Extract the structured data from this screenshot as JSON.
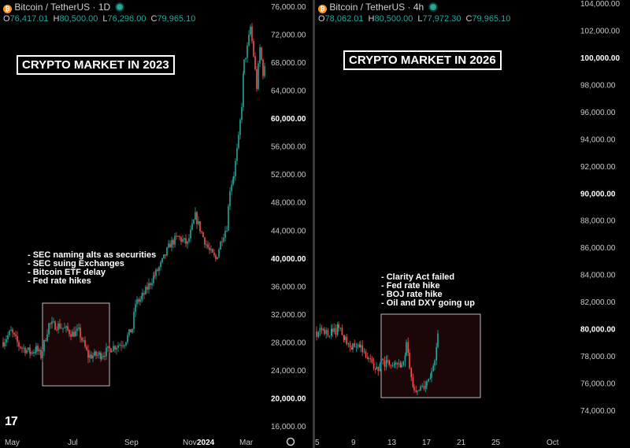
{
  "left": {
    "symbol": "Bitcoin / TetherUS",
    "interval": "1D",
    "ohlc": {
      "o": "76,417.01",
      "h": "80,500.00",
      "l": "76,296.00",
      "c": "79,965.10"
    },
    "title": "CRYPTO MARKET IN 2023",
    "notes": [
      "- SEC naming alts as securities",
      "- SEC suing Exchanges",
      "- Bitcoin ETF delay",
      "- Fed rate hikes"
    ]
  },
  "right": {
    "symbol": "Bitcoin / TetherUS",
    "interval": "4h",
    "ohlc": {
      "o": "78,062.01",
      "h": "80,500.00",
      "l": "77,972.30",
      "c": "79,965.10"
    },
    "title": "CRYPTO MARKET IN 2026",
    "notes": [
      "- Clarity Act failed",
      "- Fed rate hike",
      "- BOJ rate hike",
      "- Oil and DXY going up"
    ]
  },
  "logo": "17",
  "colors": {
    "up": "#26a69a",
    "down": "#ef5350",
    "highlight_fill": "#1c0708",
    "highlight_border": "#bbbbbb"
  },
  "chart_data": [
    {
      "type": "candlestick",
      "title": "CRYPTO MARKET IN 2023",
      "series_label": "Bitcoin / TetherUS · 1D",
      "y_ticks": [
        "76,000.00",
        "72,000.00",
        "68,000.00",
        "64,000.00",
        "60,000.00",
        "56,000.00",
        "52,000.00",
        "48,000.00",
        "44,000.00",
        "40,000.00",
        "36,000.00",
        "32,000.00",
        "28,000.00",
        "24,000.00",
        "20,000.00",
        "16,000.00"
      ],
      "y_bold": [
        "60,000.00",
        "40,000.00",
        "20,000.00"
      ],
      "ylim": [
        14000,
        77000
      ],
      "x_ticks": [
        "May",
        "Jul",
        "Sep",
        "Nov",
        "2024",
        "Mar"
      ],
      "x_bold": [
        "2024"
      ],
      "highlight": {
        "x_from": "Jun 2023",
        "x_to": "Aug 2023",
        "y_from": 22500,
        "y_to": 33000
      },
      "anchors": [
        [
          0,
          28000
        ],
        [
          10,
          29500
        ],
        [
          20,
          27500
        ],
        [
          35,
          26500
        ],
        [
          42,
          27000
        ],
        [
          48,
          26000
        ],
        [
          58,
          30500
        ],
        [
          72,
          30300
        ],
        [
          88,
          29200
        ],
        [
          96,
          29500
        ],
        [
          108,
          26000
        ],
        [
          125,
          26200
        ],
        [
          138,
          27200
        ],
        [
          154,
          28000
        ],
        [
          164,
          30000
        ],
        [
          168,
          33500
        ],
        [
          177,
          34500
        ],
        [
          192,
          37500
        ],
        [
          200,
          39000
        ],
        [
          212,
          42000
        ],
        [
          222,
          43000
        ],
        [
          234,
          42000
        ],
        [
          244,
          46000
        ],
        [
          254,
          43000
        ],
        [
          262,
          41000
        ],
        [
          270,
          39800
        ],
        [
          278,
          43000
        ],
        [
          284,
          44500
        ],
        [
          288,
          50000
        ],
        [
          293,
          52000
        ],
        [
          299,
          57000
        ],
        [
          303,
          62000
        ],
        [
          306,
          68000
        ],
        [
          310,
          70000
        ],
        [
          314,
          73000
        ],
        [
          318,
          69000
        ],
        [
          322,
          64500
        ],
        [
          326,
          70000
        ],
        [
          330,
          66500
        ],
        [
          334,
          67500
        ]
      ]
    },
    {
      "type": "candlestick",
      "title": "CRYPTO MARKET IN 2026",
      "series_label": "Bitcoin / TetherUS · 4h",
      "y_ticks": [
        "104,000.00",
        "102,000.00",
        "100,000.00",
        "98,000.00",
        "96,000.00",
        "94,000.00",
        "92,000.00",
        "90,000.00",
        "88,000.00",
        "86,000.00",
        "84,000.00",
        "82,000.00",
        "80,000.00",
        "78,000.00",
        "76,000.00",
        "74,000.00"
      ],
      "y_bold": [
        "100,000.00",
        "90,000.00",
        "80,000.00"
      ],
      "ylim": [
        73000,
        104500
      ],
      "x_ticks": [
        "5",
        "9",
        "13",
        "17",
        "21",
        "25",
        "Oct"
      ],
      "x_bold": [],
      "highlight": {
        "x_from": "11",
        "x_to": "19",
        "y_from": 74900,
        "y_to": 80700
      },
      "anchors": [
        [
          0,
          79800
        ],
        [
          10,
          79900
        ],
        [
          20,
          79700
        ],
        [
          28,
          80100
        ],
        [
          36,
          79300
        ],
        [
          46,
          78700
        ],
        [
          56,
          78400
        ],
        [
          66,
          77600
        ],
        [
          76,
          77000
        ],
        [
          82,
          77600
        ],
        [
          90,
          77500
        ],
        [
          100,
          77400
        ],
        [
          108,
          77100
        ],
        [
          114,
          78900
        ],
        [
          118,
          77400
        ],
        [
          124,
          75200
        ],
        [
          128,
          75200
        ],
        [
          132,
          75600
        ],
        [
          140,
          75800
        ],
        [
          146,
          76700
        ],
        [
          150,
          77600
        ],
        [
          154,
          79400
        ],
        [
          156,
          80100
        ]
      ]
    }
  ]
}
